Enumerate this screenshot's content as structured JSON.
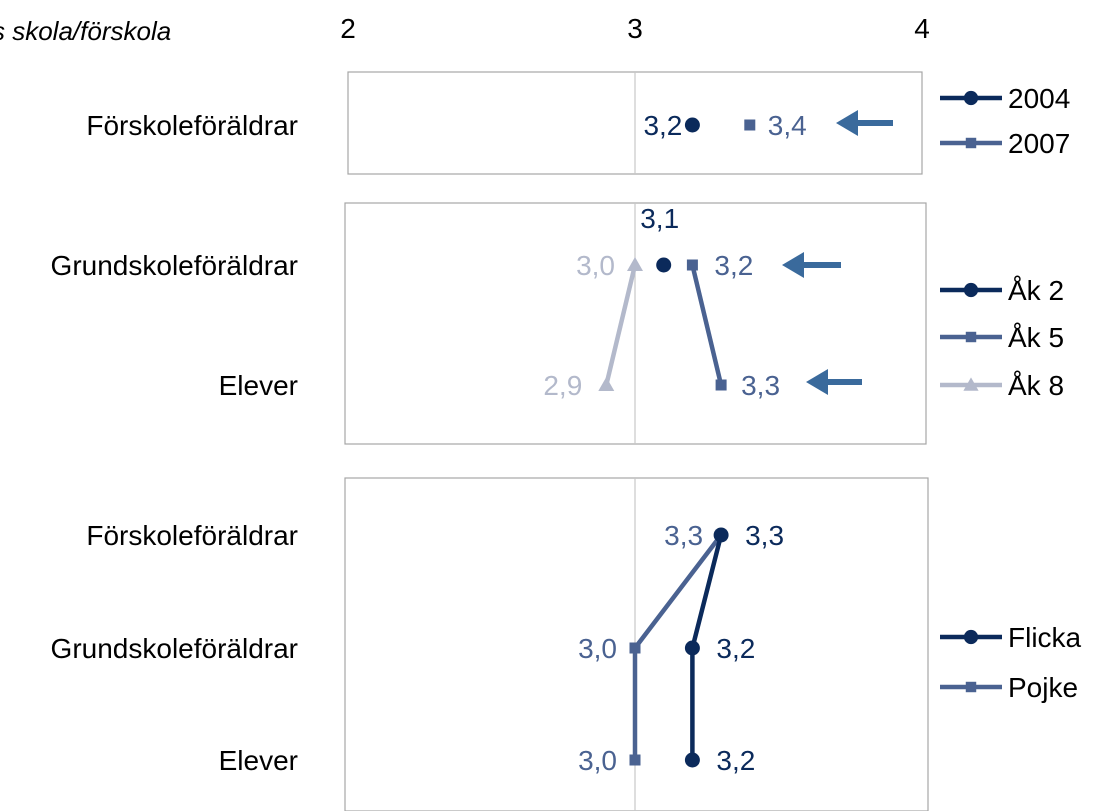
{
  "heading": "s skola/förskola",
  "colors": {
    "dark": "#0b2a5b",
    "mid": "#4a6291",
    "light": "#b3b9cb",
    "arrow": "#3a6a9c",
    "frame": "#a6a6a6",
    "gridline": "#c8c8c8"
  },
  "chart_data": [
    {
      "type": "line",
      "xlim": [
        2,
        4
      ],
      "xticks": [
        "2",
        "3",
        "4"
      ],
      "categories": [
        "Förskoleföräldrar"
      ],
      "series": [
        {
          "name": "2004",
          "marker": "circle",
          "color": "#0b2a5b",
          "values": [
            3.2
          ],
          "labels": [
            "3,2"
          ]
        },
        {
          "name": "2007",
          "marker": "square",
          "color": "#4a6291",
          "values": [
            3.4
          ],
          "labels": [
            "3,4"
          ]
        }
      ],
      "arrows": [
        {
          "category": "Förskoleföräldrar"
        }
      ],
      "legend": "right"
    },
    {
      "type": "line",
      "xlim": [
        2,
        4
      ],
      "categories": [
        "Grundskoleföräldrar",
        "Elever"
      ],
      "series": [
        {
          "name": "Åk 2",
          "marker": "circle",
          "color": "#0b2a5b",
          "values": [
            3.1,
            null
          ],
          "labels": [
            "3,1",
            ""
          ]
        },
        {
          "name": "Åk 5",
          "marker": "square",
          "color": "#4a6291",
          "values": [
            3.2,
            3.3
          ],
          "labels": [
            "3,2",
            "3,3"
          ]
        },
        {
          "name": "Åk 8",
          "marker": "triangle",
          "color": "#b3b9cb",
          "values": [
            3.0,
            2.9
          ],
          "labels": [
            "3,0",
            "2,9"
          ]
        }
      ],
      "arrows": [
        {
          "category": "Grundskoleföräldrar"
        },
        {
          "category": "Elever"
        }
      ],
      "legend": "right"
    },
    {
      "type": "line",
      "xlim": [
        2,
        4
      ],
      "categories": [
        "Förskoleföräldrar",
        "Grundskoleföräldrar",
        "Elever"
      ],
      "series": [
        {
          "name": "Flicka",
          "marker": "circle",
          "color": "#0b2a5b",
          "values": [
            3.3,
            3.2,
            3.2
          ],
          "labels": [
            "3,3",
            "3,2",
            "3,2"
          ]
        },
        {
          "name": "Pojke",
          "marker": "square",
          "color": "#4a6291",
          "values": [
            3.3,
            3.0,
            3.0
          ],
          "labels": [
            "3,3",
            "3,0",
            "3,0"
          ]
        }
      ],
      "arrows": [],
      "legend": "right"
    }
  ]
}
